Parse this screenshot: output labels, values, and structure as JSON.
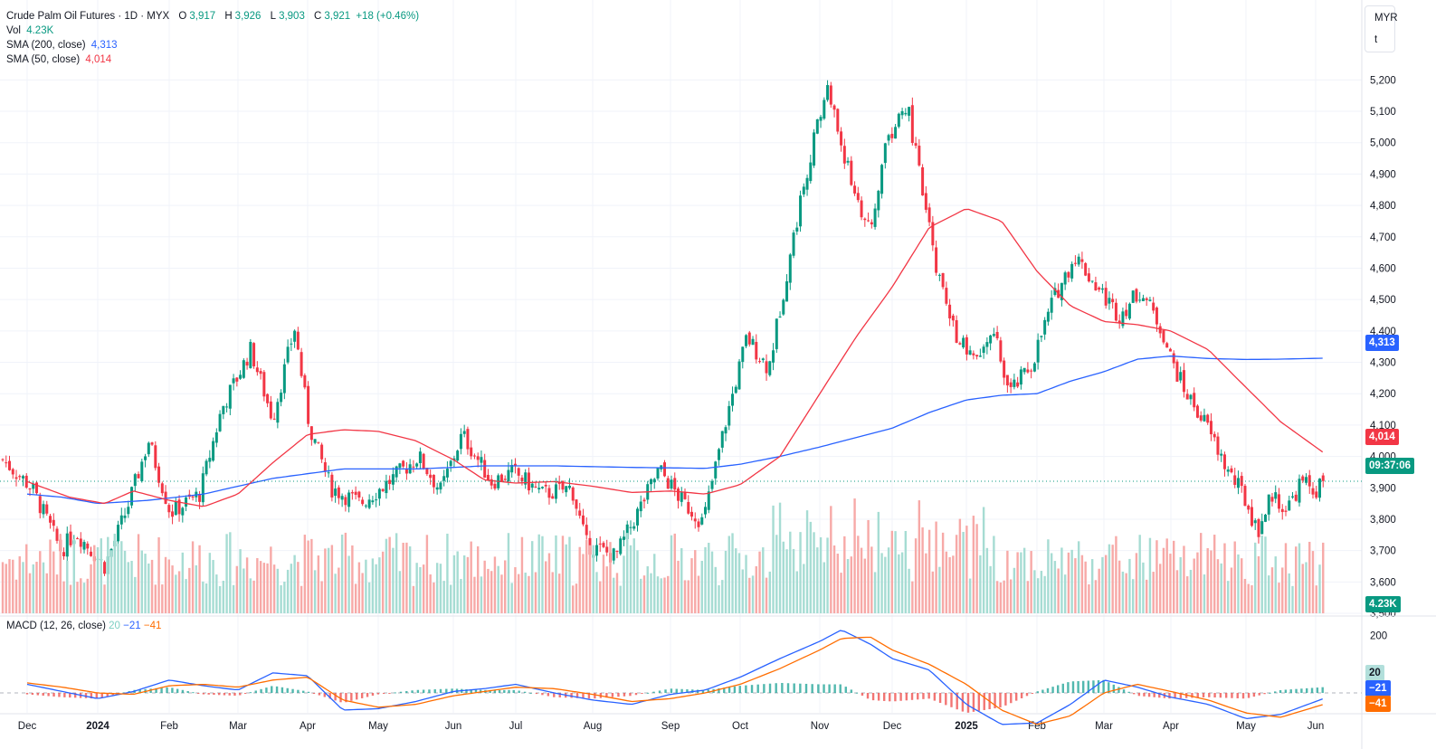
{
  "header": {
    "symbol": "Crude Palm Oil Futures · 1D · MYX",
    "open_label": "O",
    "open": "3,917",
    "high_label": "H",
    "high": "3,926",
    "low_label": "L",
    "low": "3,903",
    "close_label": "C",
    "close": "3,921",
    "change": "+18 (+0.46%)"
  },
  "indicators": {
    "vol_label": "Vol",
    "vol_value": "4.23K",
    "sma200_label": "SMA (200, close)",
    "sma200_value": "4,313",
    "sma50_label": "SMA (50, close)",
    "sma50_value": "4,014",
    "macd_label": "MACD (12, 26, close)",
    "macd_hist": "20",
    "macd_line": "−21",
    "macd_signal": "−41"
  },
  "unit": {
    "currency": "MYR",
    "lot": "t"
  },
  "tags": {
    "sma200": "4,313",
    "sma50": "4,014",
    "countdown": "09:37:06",
    "volume": "4.23K",
    "macd_hist": "20",
    "macd_line": "−21",
    "macd_signal": "−41"
  },
  "colors": {
    "up": "#089981",
    "down": "#f23645",
    "sma200": "#2962ff",
    "sma50": "#f23645",
    "macd": "#2962ff",
    "signal": "#ff6d00",
    "grid": "#f0f3fa"
  },
  "chart_data": {
    "type": "candlestick",
    "title": "Crude Palm Oil Futures · 1D · MYX",
    "price_ylim": [
      3500,
      5250
    ],
    "price_ticks": [
      "5,200",
      "5,100",
      "5,000",
      "4,900",
      "4,800",
      "4,700",
      "4,600",
      "4,500",
      "4,400",
      "4,300",
      "4,200",
      "4,100",
      "4,000",
      "3,900",
      "3,800",
      "3,700",
      "3,600",
      "3,500"
    ],
    "x_ticks": [
      "Dec",
      "2024",
      "Feb",
      "Mar",
      "Apr",
      "May",
      "Jun",
      "Jul",
      "Aug",
      "Sep",
      "Oct",
      "Nov",
      "Dec",
      "2025",
      "Feb",
      "Mar",
      "Apr",
      "May",
      "Jun"
    ],
    "close_path": [
      {
        "m": 0,
        "v": 3990
      },
      {
        "m": 0.4,
        "v": 3900
      },
      {
        "m": 0.8,
        "v": 3700
      },
      {
        "m": 1.0,
        "v": 3760
      },
      {
        "m": 1.4,
        "v": 3650
      },
      {
        "m": 1.7,
        "v": 3830
      },
      {
        "m": 2.0,
        "v": 4050
      },
      {
        "m": 2.3,
        "v": 3820
      },
      {
        "m": 2.7,
        "v": 3880
      },
      {
        "m": 3.0,
        "v": 4150
      },
      {
        "m": 3.4,
        "v": 4340
      },
      {
        "m": 3.7,
        "v": 4120
      },
      {
        "m": 4.0,
        "v": 4410
      },
      {
        "m": 4.2,
        "v": 4100
      },
      {
        "m": 4.5,
        "v": 3900
      },
      {
        "m": 4.9,
        "v": 3850
      },
      {
        "m": 5.3,
        "v": 3920
      },
      {
        "m": 5.7,
        "v": 4000
      },
      {
        "m": 6.0,
        "v": 3890
      },
      {
        "m": 6.3,
        "v": 4070
      },
      {
        "m": 6.7,
        "v": 3920
      },
      {
        "m": 7.0,
        "v": 3950
      },
      {
        "m": 7.4,
        "v": 3880
      },
      {
        "m": 7.8,
        "v": 3900
      },
      {
        "m": 8.0,
        "v": 3720
      },
      {
        "m": 8.4,
        "v": 3680
      },
      {
        "m": 8.7,
        "v": 3820
      },
      {
        "m": 9.0,
        "v": 3960
      },
      {
        "m": 9.3,
        "v": 3860
      },
      {
        "m": 9.6,
        "v": 3790
      },
      {
        "m": 9.9,
        "v": 4100
      },
      {
        "m": 10.2,
        "v": 4380
      },
      {
        "m": 10.5,
        "v": 4280
      },
      {
        "m": 10.8,
        "v": 4650
      },
      {
        "m": 11.0,
        "v": 4890
      },
      {
        "m": 11.3,
        "v": 5180
      },
      {
        "m": 11.6,
        "v": 4900
      },
      {
        "m": 11.9,
        "v": 4700
      },
      {
        "m": 12.1,
        "v": 5000
      },
      {
        "m": 12.4,
        "v": 5120
      },
      {
        "m": 12.6,
        "v": 4850
      },
      {
        "m": 12.8,
        "v": 4600
      },
      {
        "m": 13.0,
        "v": 4420
      },
      {
        "m": 13.3,
        "v": 4300
      },
      {
        "m": 13.6,
        "v": 4380
      },
      {
        "m": 13.8,
        "v": 4200
      },
      {
        "m": 14.1,
        "v": 4290
      },
      {
        "m": 14.4,
        "v": 4500
      },
      {
        "m": 14.7,
        "v": 4640
      },
      {
        "m": 15.0,
        "v": 4540
      },
      {
        "m": 15.3,
        "v": 4450
      },
      {
        "m": 15.6,
        "v": 4530
      },
      {
        "m": 15.9,
        "v": 4400
      },
      {
        "m": 16.0,
        "v": 4320
      },
      {
        "m": 16.2,
        "v": 4210
      },
      {
        "m": 16.5,
        "v": 4100
      },
      {
        "m": 16.8,
        "v": 3950
      },
      {
        "m": 17.0,
        "v": 3880
      },
      {
        "m": 17.2,
        "v": 3760
      },
      {
        "m": 17.4,
        "v": 3880
      },
      {
        "m": 17.6,
        "v": 3830
      },
      {
        "m": 17.8,
        "v": 3920
      },
      {
        "m": 18.0,
        "v": 3890
      },
      {
        "m": 18.1,
        "v": 3921
      }
    ],
    "sma200_path": [
      {
        "m": 0,
        "v": 3880
      },
      {
        "m": 0.5,
        "v": 3870
      },
      {
        "m": 1.0,
        "v": 3850
      },
      {
        "m": 1.7,
        "v": 3860
      },
      {
        "m": 2.5,
        "v": 3880
      },
      {
        "m": 3.5,
        "v": 3930
      },
      {
        "m": 4.5,
        "v": 3960
      },
      {
        "m": 5.5,
        "v": 3960
      },
      {
        "m": 6.5,
        "v": 3970
      },
      {
        "m": 7.5,
        "v": 3970
      },
      {
        "m": 8.5,
        "v": 3965
      },
      {
        "m": 9.5,
        "v": 3962
      },
      {
        "m": 10.0,
        "v": 3975
      },
      {
        "m": 10.5,
        "v": 4000
      },
      {
        "m": 11.0,
        "v": 4030
      },
      {
        "m": 11.5,
        "v": 4060
      },
      {
        "m": 12.0,
        "v": 4090
      },
      {
        "m": 12.5,
        "v": 4140
      },
      {
        "m": 13.0,
        "v": 4180
      },
      {
        "m": 13.5,
        "v": 4195
      },
      {
        "m": 14.0,
        "v": 4200
      },
      {
        "m": 14.5,
        "v": 4240
      },
      {
        "m": 15.0,
        "v": 4270
      },
      {
        "m": 15.5,
        "v": 4310
      },
      {
        "m": 16.0,
        "v": 4320
      },
      {
        "m": 16.5,
        "v": 4312
      },
      {
        "m": 17.0,
        "v": 4309
      },
      {
        "m": 17.5,
        "v": 4310
      },
      {
        "m": 18.1,
        "v": 4313
      }
    ],
    "sma50_path": [
      {
        "m": 0,
        "v": 3920
      },
      {
        "m": 0.6,
        "v": 3870
      },
      {
        "m": 1.1,
        "v": 3850
      },
      {
        "m": 1.5,
        "v": 3890
      },
      {
        "m": 2.0,
        "v": 3860
      },
      {
        "m": 2.5,
        "v": 3840
      },
      {
        "m": 3.0,
        "v": 3880
      },
      {
        "m": 3.5,
        "v": 3980
      },
      {
        "m": 4.0,
        "v": 4070
      },
      {
        "m": 4.5,
        "v": 4085
      },
      {
        "m": 5.0,
        "v": 4080
      },
      {
        "m": 5.5,
        "v": 4050
      },
      {
        "m": 6.0,
        "v": 3990
      },
      {
        "m": 6.5,
        "v": 3925
      },
      {
        "m": 7.0,
        "v": 3915
      },
      {
        "m": 7.5,
        "v": 3920
      },
      {
        "m": 8.0,
        "v": 3905
      },
      {
        "m": 8.5,
        "v": 3885
      },
      {
        "m": 9.0,
        "v": 3890
      },
      {
        "m": 9.5,
        "v": 3880
      },
      {
        "m": 10.0,
        "v": 3910
      },
      {
        "m": 10.5,
        "v": 4000
      },
      {
        "m": 11.0,
        "v": 4200
      },
      {
        "m": 11.5,
        "v": 4380
      },
      {
        "m": 12.0,
        "v": 4540
      },
      {
        "m": 12.5,
        "v": 4730
      },
      {
        "m": 13.0,
        "v": 4790
      },
      {
        "m": 13.5,
        "v": 4750
      },
      {
        "m": 14.0,
        "v": 4590
      },
      {
        "m": 14.5,
        "v": 4480
      },
      {
        "m": 15.0,
        "v": 4430
      },
      {
        "m": 15.5,
        "v": 4420
      },
      {
        "m": 16.0,
        "v": 4400
      },
      {
        "m": 16.5,
        "v": 4340
      },
      {
        "m": 17.0,
        "v": 4220
      },
      {
        "m": 17.5,
        "v": 4110
      },
      {
        "m": 18.1,
        "v": 4014
      }
    ],
    "macd_ylim": [
      -60,
      240
    ],
    "macd_ticks": [
      "200"
    ],
    "macd_path": [
      {
        "m": 0,
        "v": 30
      },
      {
        "m": 0.5,
        "v": 5
      },
      {
        "m": 1.0,
        "v": -20
      },
      {
        "m": 1.5,
        "v": 5
      },
      {
        "m": 2.0,
        "v": 45
      },
      {
        "m": 2.5,
        "v": 25
      },
      {
        "m": 3.0,
        "v": 10
      },
      {
        "m": 3.5,
        "v": 70
      },
      {
        "m": 4.0,
        "v": 60
      },
      {
        "m": 4.5,
        "v": -60
      },
      {
        "m": 5.0,
        "v": -55
      },
      {
        "m": 5.5,
        "v": -30
      },
      {
        "m": 6.0,
        "v": 5
      },
      {
        "m": 6.5,
        "v": 15
      },
      {
        "m": 7.0,
        "v": 30
      },
      {
        "m": 7.5,
        "v": 0
      },
      {
        "m": 8.0,
        "v": -25
      },
      {
        "m": 8.5,
        "v": -40
      },
      {
        "m": 9.0,
        "v": -5
      },
      {
        "m": 9.5,
        "v": 10
      },
      {
        "m": 10.0,
        "v": 55
      },
      {
        "m": 10.5,
        "v": 120
      },
      {
        "m": 11.0,
        "v": 180
      },
      {
        "m": 11.3,
        "v": 220
      },
      {
        "m": 11.7,
        "v": 170
      },
      {
        "m": 12.0,
        "v": 120
      },
      {
        "m": 12.5,
        "v": 80
      },
      {
        "m": 13.0,
        "v": -40
      },
      {
        "m": 13.5,
        "v": -110
      },
      {
        "m": 14.0,
        "v": -105
      },
      {
        "m": 14.5,
        "v": -40
      },
      {
        "m": 15.0,
        "v": 45
      },
      {
        "m": 15.5,
        "v": 20
      },
      {
        "m": 16.0,
        "v": -15
      },
      {
        "m": 16.5,
        "v": -40
      },
      {
        "m": 17.0,
        "v": -90
      },
      {
        "m": 17.5,
        "v": -75
      },
      {
        "m": 18.1,
        "v": -21
      }
    ],
    "signal_path": [
      {
        "m": 0,
        "v": 35
      },
      {
        "m": 0.5,
        "v": 20
      },
      {
        "m": 1.0,
        "v": 0
      },
      {
        "m": 1.5,
        "v": -5
      },
      {
        "m": 2.0,
        "v": 25
      },
      {
        "m": 2.5,
        "v": 30
      },
      {
        "m": 3.0,
        "v": 20
      },
      {
        "m": 3.5,
        "v": 45
      },
      {
        "m": 4.0,
        "v": 55
      },
      {
        "m": 4.5,
        "v": -25
      },
      {
        "m": 5.0,
        "v": -50
      },
      {
        "m": 5.5,
        "v": -40
      },
      {
        "m": 6.0,
        "v": -10
      },
      {
        "m": 6.5,
        "v": 5
      },
      {
        "m": 7.0,
        "v": 20
      },
      {
        "m": 7.5,
        "v": 15
      },
      {
        "m": 8.0,
        "v": -5
      },
      {
        "m": 8.5,
        "v": -30
      },
      {
        "m": 9.0,
        "v": -20
      },
      {
        "m": 9.5,
        "v": 0
      },
      {
        "m": 10.0,
        "v": 30
      },
      {
        "m": 10.5,
        "v": 85
      },
      {
        "m": 11.0,
        "v": 150
      },
      {
        "m": 11.3,
        "v": 190
      },
      {
        "m": 11.7,
        "v": 195
      },
      {
        "m": 12.0,
        "v": 150
      },
      {
        "m": 12.5,
        "v": 100
      },
      {
        "m": 13.0,
        "v": 30
      },
      {
        "m": 13.5,
        "v": -60
      },
      {
        "m": 14.0,
        "v": -110
      },
      {
        "m": 14.5,
        "v": -80
      },
      {
        "m": 15.0,
        "v": 0
      },
      {
        "m": 15.5,
        "v": 30
      },
      {
        "m": 16.0,
        "v": 5
      },
      {
        "m": 16.5,
        "v": -25
      },
      {
        "m": 17.0,
        "v": -70
      },
      {
        "m": 17.5,
        "v": -85
      },
      {
        "m": 18.1,
        "v": -41
      }
    ]
  }
}
